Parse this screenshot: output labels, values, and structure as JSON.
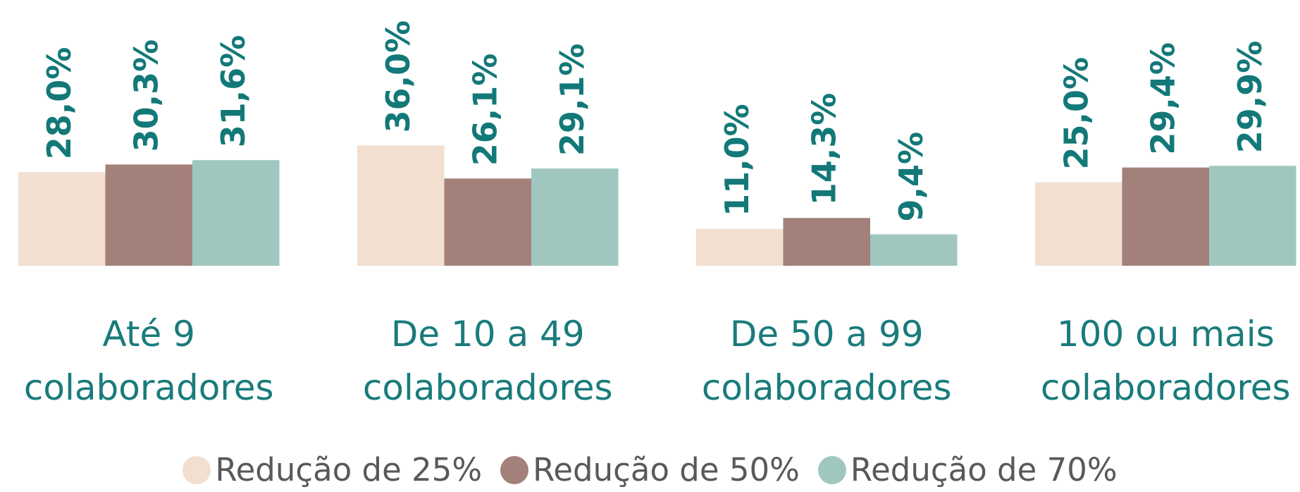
{
  "chart_data": {
    "type": "bar",
    "categories": [
      "Até 9 colaboradores",
      "De 10 a 49 colaboradores",
      "De 50 a 99 colaboradores",
      "100 ou mais colaboradores"
    ],
    "series": [
      {
        "name": "Redução de 25%",
        "color": "#f2dfd0",
        "values": [
          28.0,
          36.0,
          11.0,
          25.0
        ],
        "value_labels": [
          "28,0%",
          "36,0%",
          "11,0%",
          "25,0%"
        ]
      },
      {
        "name": "Redução de 50%",
        "color": "#a3807a",
        "values": [
          30.3,
          26.1,
          14.3,
          29.4
        ],
        "value_labels": [
          "30,3%",
          "26,1%",
          "14,3%",
          "29,4%"
        ]
      },
      {
        "name": "Redução de 70%",
        "color": "#9fc7bf",
        "values": [
          31.6,
          29.1,
          9.4,
          29.9
        ],
        "value_labels": [
          "31,6%",
          "29,1%",
          "9,4%",
          "29,9%"
        ]
      }
    ],
    "legend": "bottom"
  }
}
